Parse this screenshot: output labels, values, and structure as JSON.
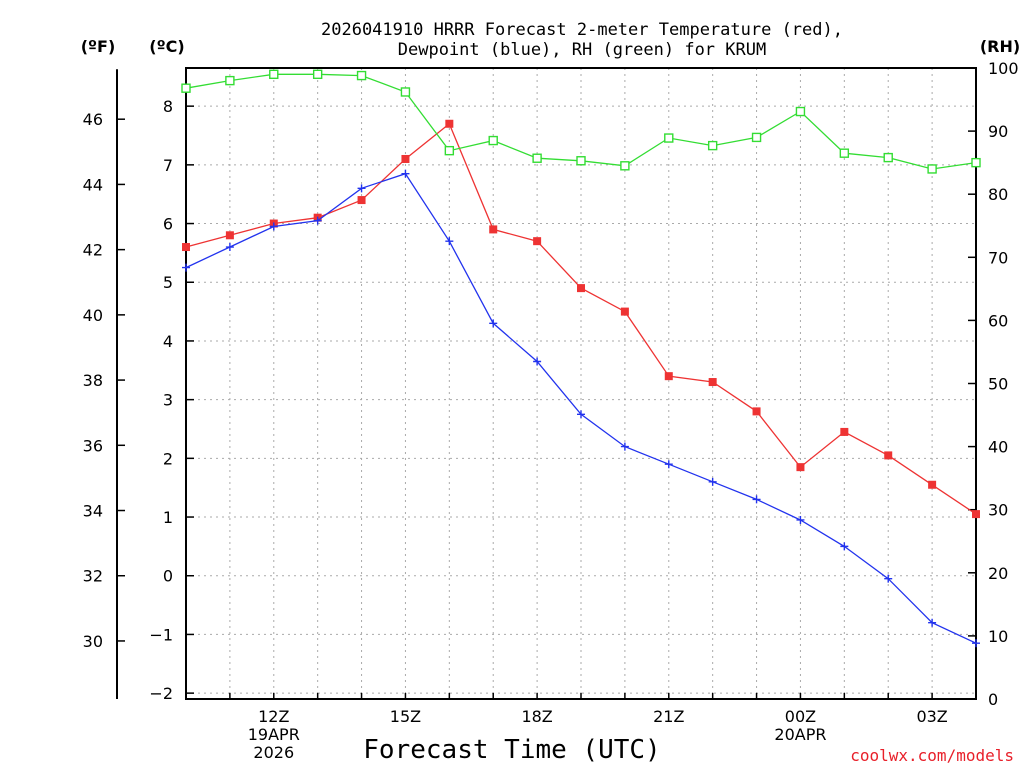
{
  "chart_data": {
    "type": "line",
    "title_line1": "2026041910 HRRR Forecast 2-meter Temperature (red),",
    "title_line2": "Dewpoint (blue), RH (green) for KRUM",
    "xlabel": "Forecast Time (UTC)",
    "credit": "coolwx.com/models",
    "units": {
      "fahrenheit": "(ºF)",
      "celsius": "(ºC)",
      "rh": "(RH)"
    },
    "x": [
      "10Z",
      "11Z",
      "12Z",
      "13Z",
      "14Z",
      "15Z",
      "16Z",
      "17Z",
      "18Z",
      "19Z",
      "20Z",
      "21Z",
      "22Z",
      "23Z",
      "00Z",
      "01Z",
      "02Z",
      "03Z",
      "04Z"
    ],
    "x_tick_labels": [
      {
        "index": 2,
        "lines": [
          "12Z",
          "19APR",
          "2026"
        ]
      },
      {
        "index": 5,
        "lines": [
          "15Z"
        ]
      },
      {
        "index": 8,
        "lines": [
          "18Z"
        ]
      },
      {
        "index": 11,
        "lines": [
          "21Z"
        ]
      },
      {
        "index": 14,
        "lines": [
          "00Z",
          "20APR"
        ]
      },
      {
        "index": 17,
        "lines": [
          "03Z"
        ]
      }
    ],
    "celsius_ylim": [
      -2.1,
      8.65
    ],
    "celsius_ticks": [
      -2,
      -1,
      0,
      1,
      2,
      3,
      4,
      5,
      6,
      7,
      8
    ],
    "fahrenheit_ticks": [
      30,
      32,
      34,
      36,
      38,
      40,
      42,
      44,
      46
    ],
    "rh_ylim": [
      0,
      100
    ],
    "rh_ticks": [
      0,
      10,
      20,
      30,
      40,
      50,
      60,
      70,
      80,
      90,
      100
    ],
    "grid": true,
    "series": [
      {
        "name": "Temperature",
        "color": "#ee3333",
        "marker": "filled-square",
        "axis": "celsius",
        "values": [
          5.6,
          5.8,
          6.0,
          6.1,
          6.4,
          7.1,
          7.7,
          5.9,
          5.7,
          4.9,
          4.5,
          3.4,
          3.3,
          2.8,
          1.85,
          2.45,
          2.05,
          1.55,
          1.05
        ]
      },
      {
        "name": "Dewpoint",
        "color": "#2233ee",
        "marker": "plus",
        "axis": "celsius",
        "values": [
          5.25,
          5.6,
          5.95,
          6.05,
          6.6,
          6.85,
          5.7,
          4.3,
          3.65,
          2.75,
          2.2,
          1.9,
          1.6,
          1.3,
          0.95,
          0.5,
          -0.05,
          -0.8,
          -1.15
        ]
      },
      {
        "name": "RH",
        "color": "#33dd33",
        "marker": "open-square",
        "axis": "rh",
        "values": [
          96.8,
          98.0,
          99.0,
          99.0,
          98.8,
          96.2,
          86.9,
          88.5,
          85.7,
          85.3,
          84.5,
          88.9,
          87.7,
          89.0,
          93.1,
          86.5,
          85.8,
          84.0,
          85.0
        ]
      }
    ]
  }
}
